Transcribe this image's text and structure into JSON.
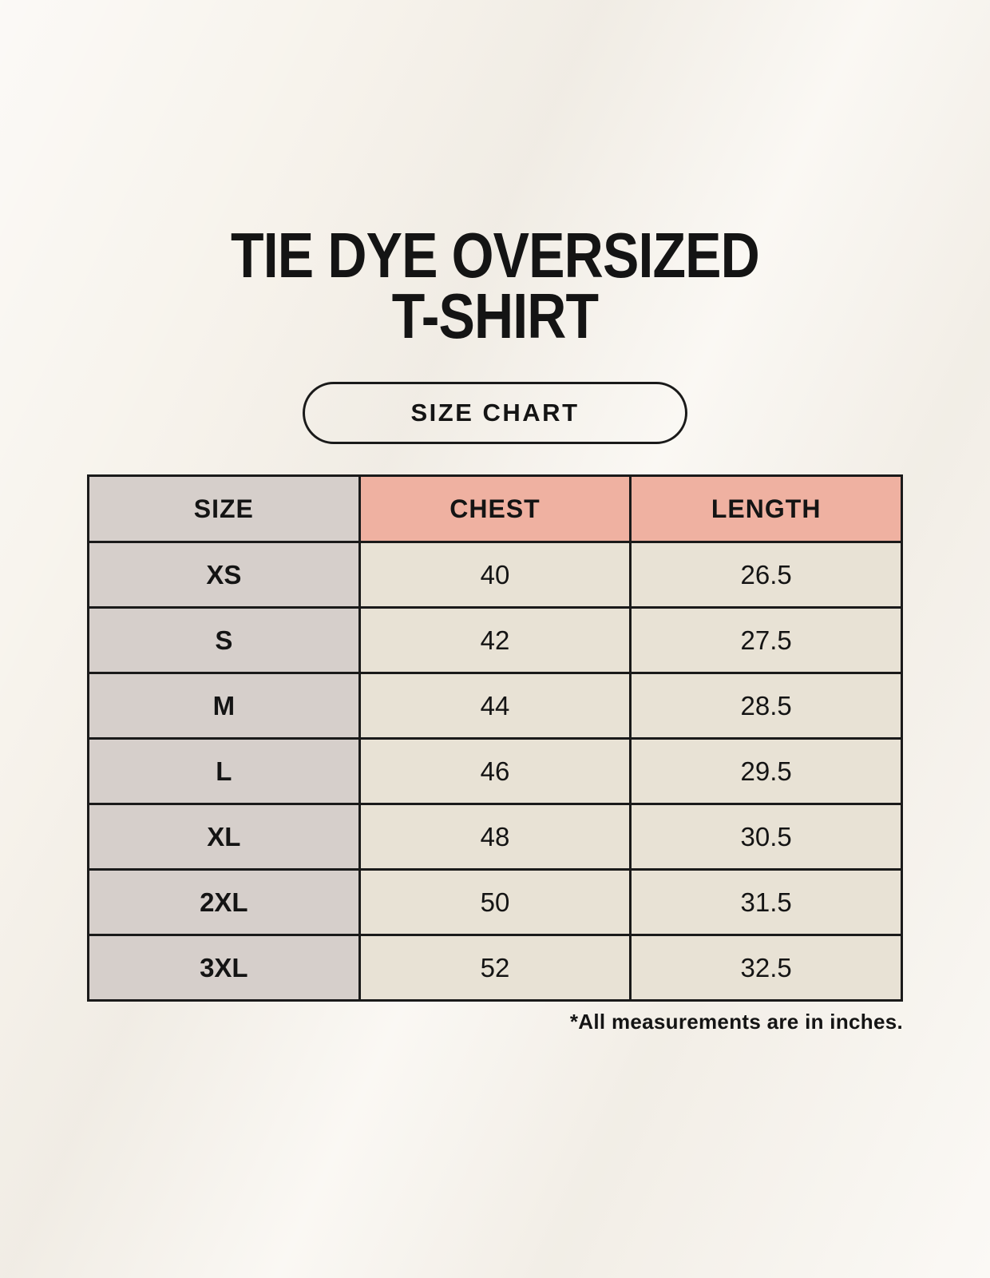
{
  "page": {
    "title_line1": "TIE DYE OVERSIZED",
    "title_line2": "T-SHIRT",
    "badge_label": "SIZE CHART",
    "footnote": "*All measurements are in inches."
  },
  "table": {
    "columns": [
      "SIZE",
      "CHEST",
      "LENGTH"
    ],
    "rows": [
      {
        "size": "XS",
        "chest": "40",
        "length": "26.5"
      },
      {
        "size": "S",
        "chest": "42",
        "length": "27.5"
      },
      {
        "size": "M",
        "chest": "44",
        "length": "28.5"
      },
      {
        "size": "L",
        "chest": "46",
        "length": "29.5"
      },
      {
        "size": "XL",
        "chest": "48",
        "length": "30.5"
      },
      {
        "size": "2XL",
        "chest": "50",
        "length": "31.5"
      },
      {
        "size": "3XL",
        "chest": "52",
        "length": "32.5"
      }
    ],
    "units": "inches"
  },
  "colors": {
    "background": "#F7F3EC",
    "text": "#141414",
    "border": "#1A1A1A",
    "header_measure_bg": "#EFB1A1",
    "size_col_bg": "#D6CFCB",
    "cell_bg": "#E8E2D5"
  }
}
